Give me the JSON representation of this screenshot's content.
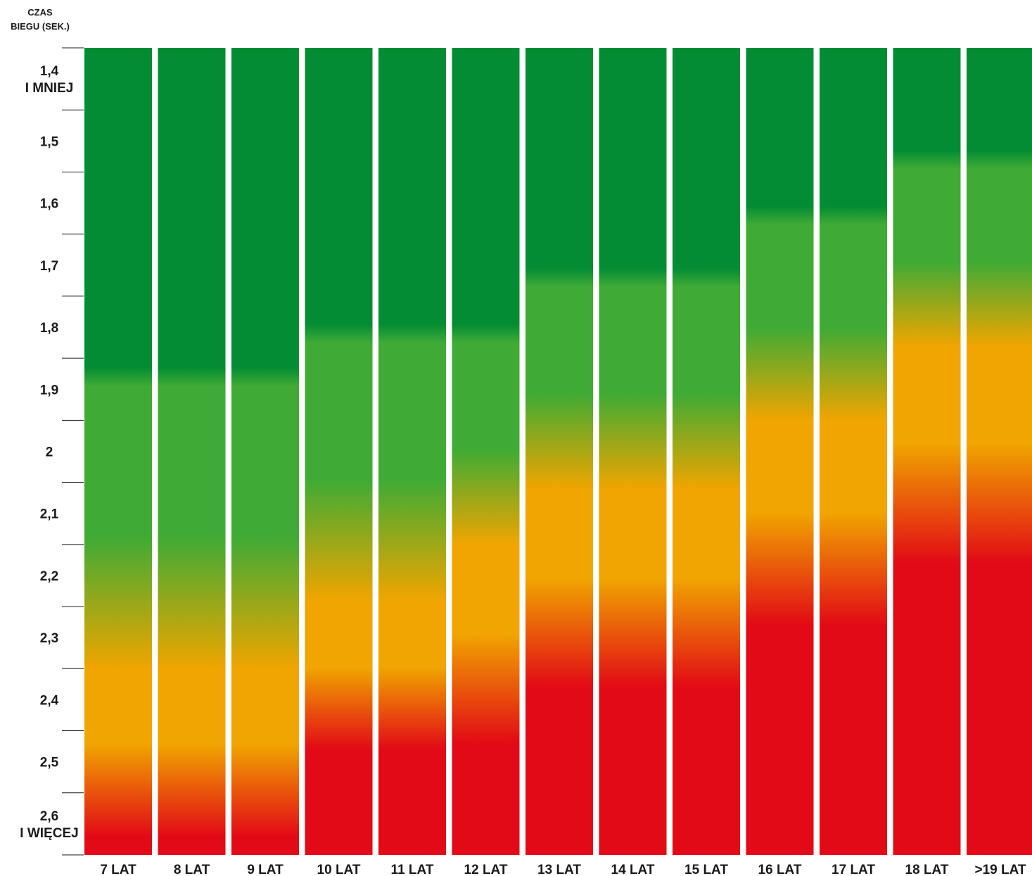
{
  "chart_data": {
    "type": "heatmap",
    "ylabel_lines": [
      "CZAS",
      "BIEGU (SEK.)"
    ],
    "y_ticks": [
      {
        "value": 1.4,
        "lines": [
          "1,4",
          "I MNIEJ"
        ]
      },
      {
        "value": 1.5,
        "lines": [
          "1,5"
        ]
      },
      {
        "value": 1.6,
        "lines": [
          "1,6"
        ]
      },
      {
        "value": 1.7,
        "lines": [
          "1,7"
        ]
      },
      {
        "value": 1.8,
        "lines": [
          "1,8"
        ]
      },
      {
        "value": 1.9,
        "lines": [
          "1,9"
        ]
      },
      {
        "value": 2.0,
        "lines": [
          "2"
        ]
      },
      {
        "value": 2.1,
        "lines": [
          "2,1"
        ]
      },
      {
        "value": 2.2,
        "lines": [
          "2,2"
        ]
      },
      {
        "value": 2.3,
        "lines": [
          "2,3"
        ]
      },
      {
        "value": 2.4,
        "lines": [
          "2,4"
        ]
      },
      {
        "value": 2.5,
        "lines": [
          "2,5"
        ]
      },
      {
        "value": 2.6,
        "lines": [
          "2,6",
          "I WIĘCEJ"
        ]
      }
    ],
    "ylim": [
      1.35,
      2.65
    ],
    "colors": {
      "dark_green": "#038c34",
      "green": "#3fab35",
      "orange": "#f0a500",
      "red": "#e20a16"
    },
    "categories": [
      "7 LAT",
      "8 LAT",
      "9 LAT",
      "10 LAT",
      "11 LAT",
      "12 LAT",
      "13 LAT",
      "14 LAT",
      "15 LAT",
      "16 LAT",
      "17 LAT",
      "18 LAT",
      ">19 LAT"
    ],
    "thresholds": [
      {
        "green_start": 1.88,
        "orange_start": 2.35,
        "red_start": 2.62
      },
      {
        "green_start": 1.88,
        "orange_start": 2.35,
        "red_start": 2.62
      },
      {
        "green_start": 1.88,
        "orange_start": 2.35,
        "red_start": 2.62
      },
      {
        "green_start": 1.81,
        "orange_start": 2.24,
        "red_start": 2.48
      },
      {
        "green_start": 1.81,
        "orange_start": 2.24,
        "red_start": 2.48
      },
      {
        "green_start": 1.81,
        "orange_start": 2.15,
        "red_start": 2.47
      },
      {
        "green_start": 1.72,
        "orange_start": 2.06,
        "red_start": 2.38
      },
      {
        "green_start": 1.72,
        "orange_start": 2.06,
        "red_start": 2.38
      },
      {
        "green_start": 1.72,
        "orange_start": 2.06,
        "red_start": 2.38
      },
      {
        "green_start": 1.62,
        "orange_start": 1.95,
        "red_start": 2.28
      },
      {
        "green_start": 1.62,
        "orange_start": 1.95,
        "red_start": 2.28
      },
      {
        "green_start": 1.53,
        "orange_start": 1.83,
        "red_start": 2.18
      },
      {
        "green_start": 1.53,
        "orange_start": 1.83,
        "red_start": 2.18
      }
    ]
  }
}
